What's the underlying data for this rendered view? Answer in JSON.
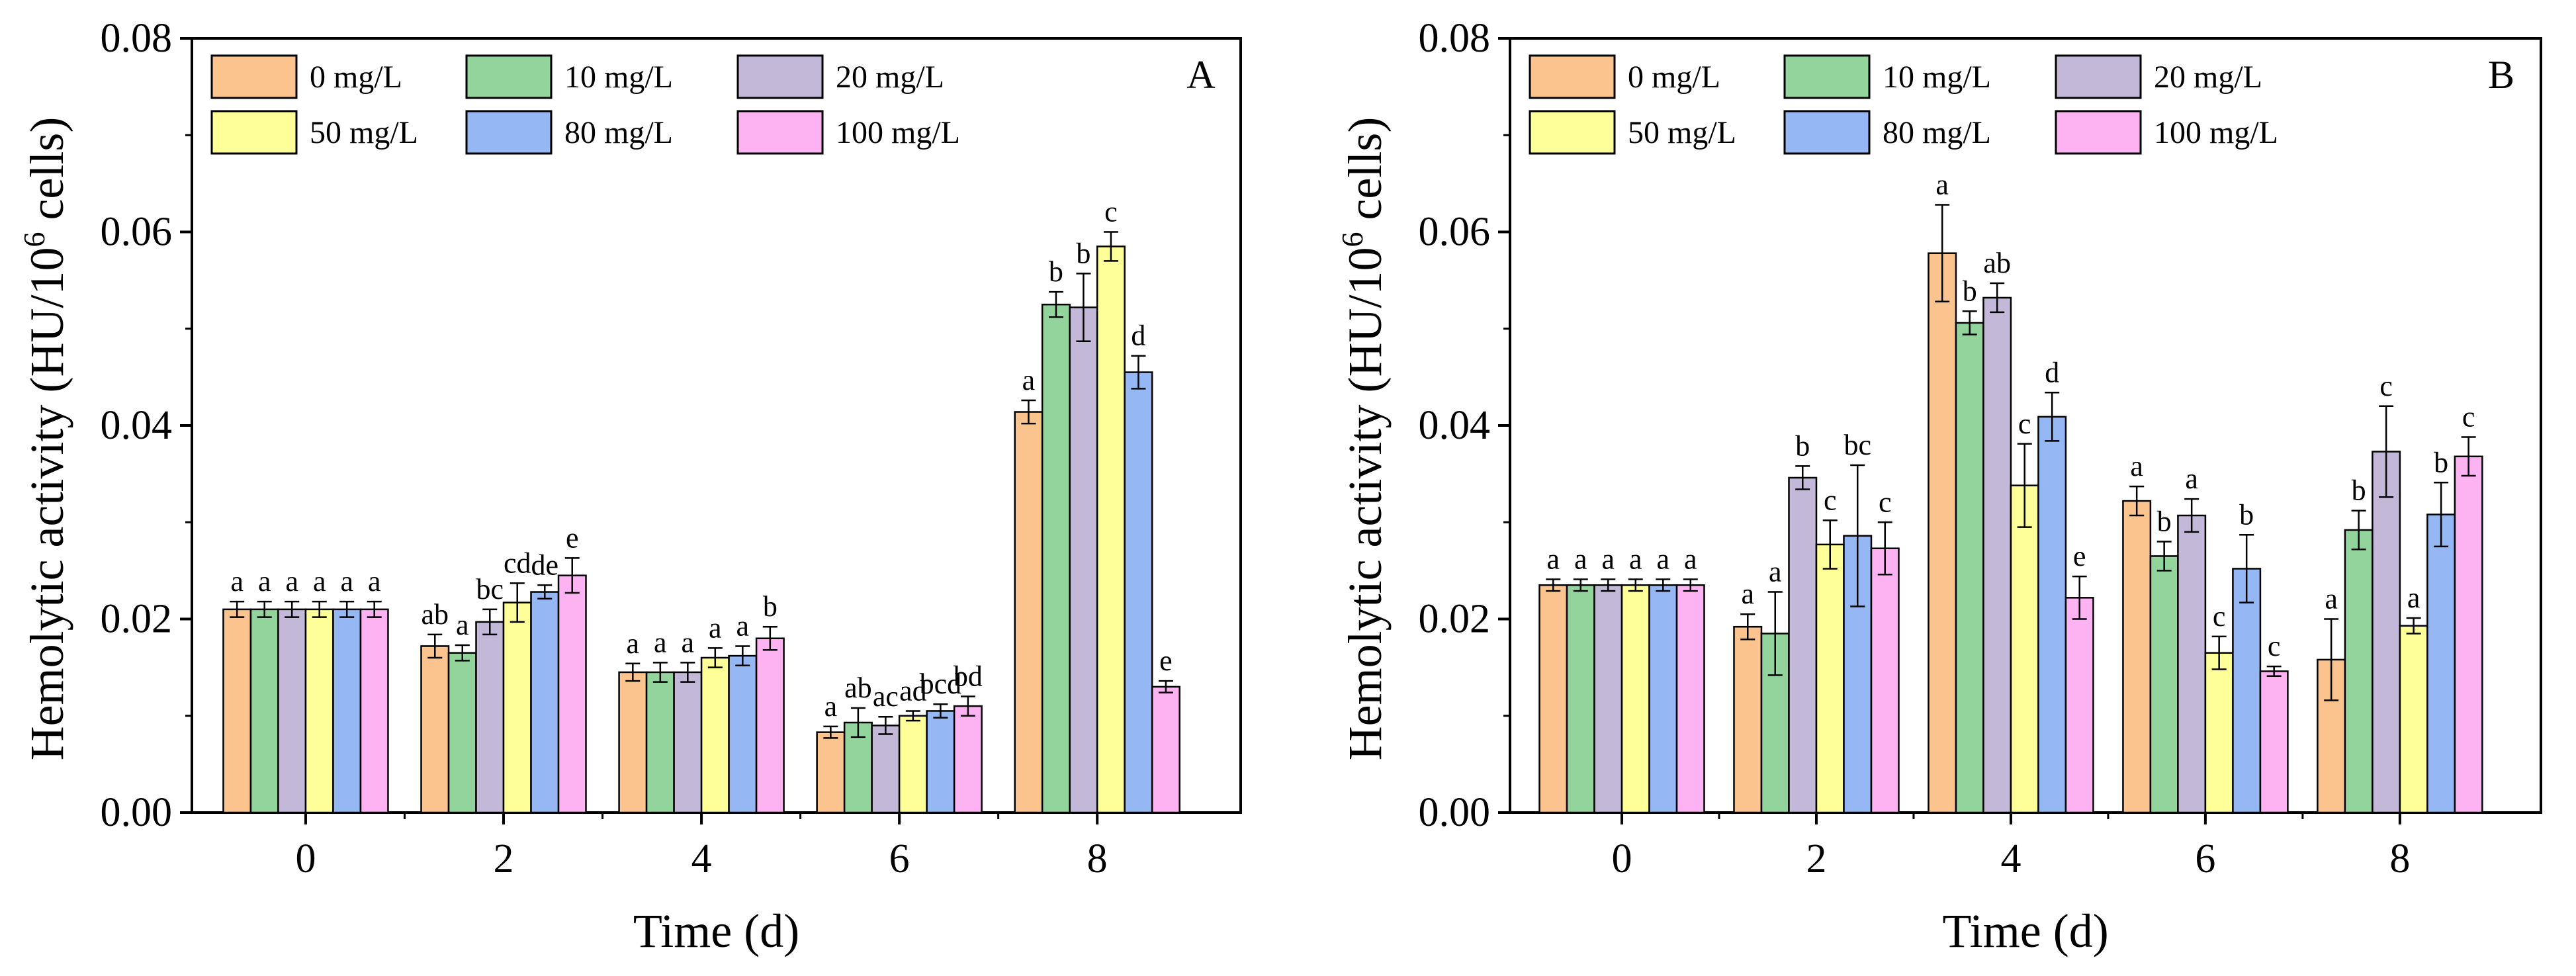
{
  "colors": {
    "0 mg/L": "#FBC48E",
    "10 mg/L": "#93D49C",
    "20 mg/L": "#C3B8D8",
    "50 mg/L": "#FFFF9A",
    "80 mg/L": "#95B8F5",
    "100 mg/L": "#FDB2F2"
  },
  "chart_data": [
    {
      "type": "bar",
      "panel": "A",
      "xlabel": "Time (d)",
      "ylabel": "Hemolytic activity (HU/10",
      "ylabel_sup": "6",
      "ylabel_suffix": " cells)",
      "categories": [
        "0",
        "2",
        "4",
        "6",
        "8"
      ],
      "ylim": [
        0,
        0.08
      ],
      "yticks": [
        "0.00",
        "0.02",
        "0.04",
        "0.06",
        "0.08"
      ],
      "legend_position": "top-left",
      "series": [
        {
          "name": "0 mg/L",
          "values": [
            0.021,
            0.0172,
            0.0145,
            0.0083,
            0.0414
          ],
          "errors": [
            0.0008,
            0.0012,
            0.0009,
            0.0006,
            0.0012
          ],
          "letters": [
            "a",
            "ab",
            "a",
            "a",
            "a"
          ]
        },
        {
          "name": "10 mg/L",
          "values": [
            0.021,
            0.0165,
            0.0145,
            0.0093,
            0.0525
          ],
          "errors": [
            0.0008,
            0.0008,
            0.001,
            0.0015,
            0.0013
          ],
          "letters": [
            "a",
            "a",
            "a",
            "ab",
            "b"
          ]
        },
        {
          "name": "20 mg/L",
          "values": [
            0.021,
            0.0197,
            0.0145,
            0.009,
            0.0522
          ],
          "errors": [
            0.0008,
            0.0013,
            0.001,
            0.0009,
            0.0035
          ],
          "letters": [
            "a",
            "bc",
            "a",
            "ac",
            "b"
          ]
        },
        {
          "name": "50 mg/L",
          "values": [
            0.021,
            0.0217,
            0.016,
            0.01,
            0.0585
          ],
          "errors": [
            0.0008,
            0.002,
            0.001,
            0.0005,
            0.0015
          ],
          "letters": [
            "a",
            "cd",
            "a",
            "ad",
            "c"
          ]
        },
        {
          "name": "80 mg/L",
          "values": [
            0.021,
            0.0228,
            0.0162,
            0.0105,
            0.0455
          ],
          "errors": [
            0.0008,
            0.0007,
            0.001,
            0.0007,
            0.0017
          ],
          "letters": [
            "a",
            "de",
            "a",
            "bcd",
            "d"
          ]
        },
        {
          "name": "100 mg/L",
          "values": [
            0.021,
            0.0245,
            0.018,
            0.011,
            0.013
          ],
          "errors": [
            0.0008,
            0.0018,
            0.0012,
            0.001,
            0.0006
          ],
          "letters": [
            "a",
            "e",
            "b",
            "bd",
            "e"
          ]
        }
      ]
    },
    {
      "type": "bar",
      "panel": "B",
      "xlabel": "Time (d)",
      "ylabel": "Hemolytic activity (HU/10",
      "ylabel_sup": "6",
      "ylabel_suffix": " cells)",
      "categories": [
        "0",
        "2",
        "4",
        "6",
        "8"
      ],
      "ylim": [
        0,
        0.08
      ],
      "yticks": [
        "0.00",
        "0.02",
        "0.04",
        "0.06",
        "0.08"
      ],
      "legend_position": "top-left",
      "series": [
        {
          "name": "0 mg/L",
          "values": [
            0.0235,
            0.0192,
            0.0578,
            0.0322,
            0.0158
          ],
          "errors": [
            0.0006,
            0.0013,
            0.005,
            0.0015,
            0.0042
          ],
          "letters": [
            "a",
            "a",
            "a",
            "a",
            "a"
          ]
        },
        {
          "name": "10 mg/L",
          "values": [
            0.0235,
            0.0185,
            0.0506,
            0.0265,
            0.0292
          ],
          "errors": [
            0.0006,
            0.0043,
            0.0012,
            0.0015,
            0.002
          ],
          "letters": [
            "a",
            "a",
            "b",
            "b",
            "b"
          ]
        },
        {
          "name": "20 mg/L",
          "values": [
            0.0235,
            0.0346,
            0.0532,
            0.0307,
            0.0373
          ],
          "errors": [
            0.0006,
            0.0012,
            0.0015,
            0.0017,
            0.0047
          ],
          "letters": [
            "a",
            "b",
            "ab",
            "a",
            "c"
          ]
        },
        {
          "name": "50 mg/L",
          "values": [
            0.0235,
            0.0277,
            0.0338,
            0.0165,
            0.0193
          ],
          "errors": [
            0.0006,
            0.0025,
            0.0043,
            0.0017,
            0.0008
          ],
          "letters": [
            "a",
            "c",
            "c",
            "c",
            "a"
          ]
        },
        {
          "name": "80 mg/L",
          "values": [
            0.0235,
            0.0286,
            0.0409,
            0.0252,
            0.0308
          ],
          "errors": [
            0.0006,
            0.0073,
            0.0025,
            0.0035,
            0.0033
          ],
          "letters": [
            "a",
            "bc",
            "d",
            "b",
            "b"
          ]
        },
        {
          "name": "100 mg/L",
          "values": [
            0.0235,
            0.0273,
            0.0222,
            0.0146,
            0.0368
          ],
          "errors": [
            0.0006,
            0.0027,
            0.0022,
            0.0005,
            0.002
          ],
          "letters": [
            "a",
            "c",
            "e",
            "c",
            "c"
          ]
        }
      ]
    }
  ]
}
